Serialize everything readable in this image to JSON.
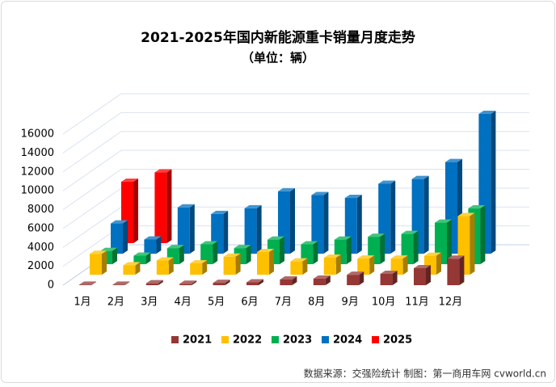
{
  "chart_data": {
    "type": "bar3d",
    "title": "2021-2025年国内新能源重卡销量月度走势",
    "subtitle": "（单位：辆）",
    "source": "数据来源：交强险统计 制图：第一商用车网 cvworld.cn",
    "categories": [
      "1月",
      "2月",
      "3月",
      "4月",
      "5月",
      "6月",
      "7月",
      "8月",
      "9月",
      "10月",
      "11月",
      "12月"
    ],
    "series": [
      {
        "name": "2021",
        "color": "#953735",
        "values": [
          50,
          50,
          200,
          150,
          250,
          300,
          600,
          700,
          1100,
          1200,
          1800,
          2800
        ]
      },
      {
        "name": "2022",
        "color": "#ffc000",
        "values": [
          2200,
          1000,
          1500,
          1200,
          1900,
          2400,
          1400,
          1800,
          1700,
          1700,
          2000,
          6200
        ]
      },
      {
        "name": "2023",
        "color": "#00b050",
        "values": [
          1400,
          900,
          1700,
          2100,
          1700,
          2600,
          2100,
          2600,
          2900,
          3200,
          4400,
          5900
        ]
      },
      {
        "name": "2024",
        "color": "#0070c0",
        "values": [
          3200,
          1500,
          4900,
          4200,
          4800,
          6600,
          6200,
          5900,
          7400,
          7900,
          9700,
          14800
        ]
      },
      {
        "name": "2025",
        "color": "#ff0000",
        "values": [
          6500,
          7500,
          null,
          null,
          null,
          null,
          null,
          null,
          null,
          null,
          null,
          null
        ]
      }
    ],
    "ylim": [
      0,
      16000
    ],
    "yticks": [
      0,
      2000,
      4000,
      6000,
      8000,
      10000,
      12000,
      14000,
      16000
    ],
    "grid": true,
    "legend": "bottom"
  }
}
